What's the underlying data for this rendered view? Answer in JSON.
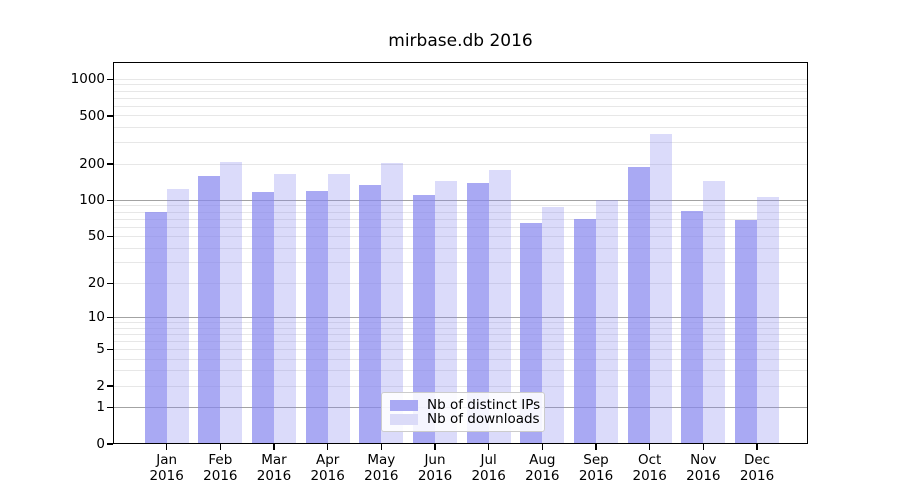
{
  "chart_data": {
    "type": "bar",
    "title": "mirbase.db 2016",
    "categories": [
      "Jan",
      "Feb",
      "Mar",
      "Apr",
      "May",
      "Jun",
      "Jul",
      "Aug",
      "Sep",
      "Oct",
      "Nov",
      "Dec"
    ],
    "x_tick_second_line": "2016",
    "xlabel": "",
    "ylabel": "",
    "y_scale": "log1p",
    "y_ticks": [
      0,
      1,
      2,
      5,
      10,
      20,
      50,
      100,
      200,
      500,
      1000
    ],
    "y_major_gridlines": [
      1,
      10,
      100
    ],
    "y_minor_gridlines": [
      2,
      3,
      4,
      5,
      6,
      7,
      8,
      9,
      20,
      30,
      40,
      50,
      60,
      70,
      80,
      90,
      200,
      300,
      400,
      500,
      600,
      700,
      800,
      900,
      1000
    ],
    "ylim": [
      0,
      1390
    ],
    "grid": true,
    "series": [
      {
        "name": "Nb of distinct IPs",
        "color": "rgba(136,136,238,0.72)",
        "legend_color": "#a9a9f3",
        "values": [
          80,
          160,
          117,
          120,
          134,
          110,
          140,
          65,
          70,
          190,
          81,
          69
        ]
      },
      {
        "name": "Nb of downloads",
        "color": "rgba(136,136,238,0.30)",
        "legend_color": "#dbdbf8",
        "values": [
          125,
          207,
          166,
          167,
          203,
          144,
          179,
          88,
          100,
          355,
          146,
          107
        ]
      }
    ],
    "legend": {
      "position": "lower center",
      "entries": [
        "Nb of distinct IPs",
        "Nb of downloads"
      ]
    }
  }
}
